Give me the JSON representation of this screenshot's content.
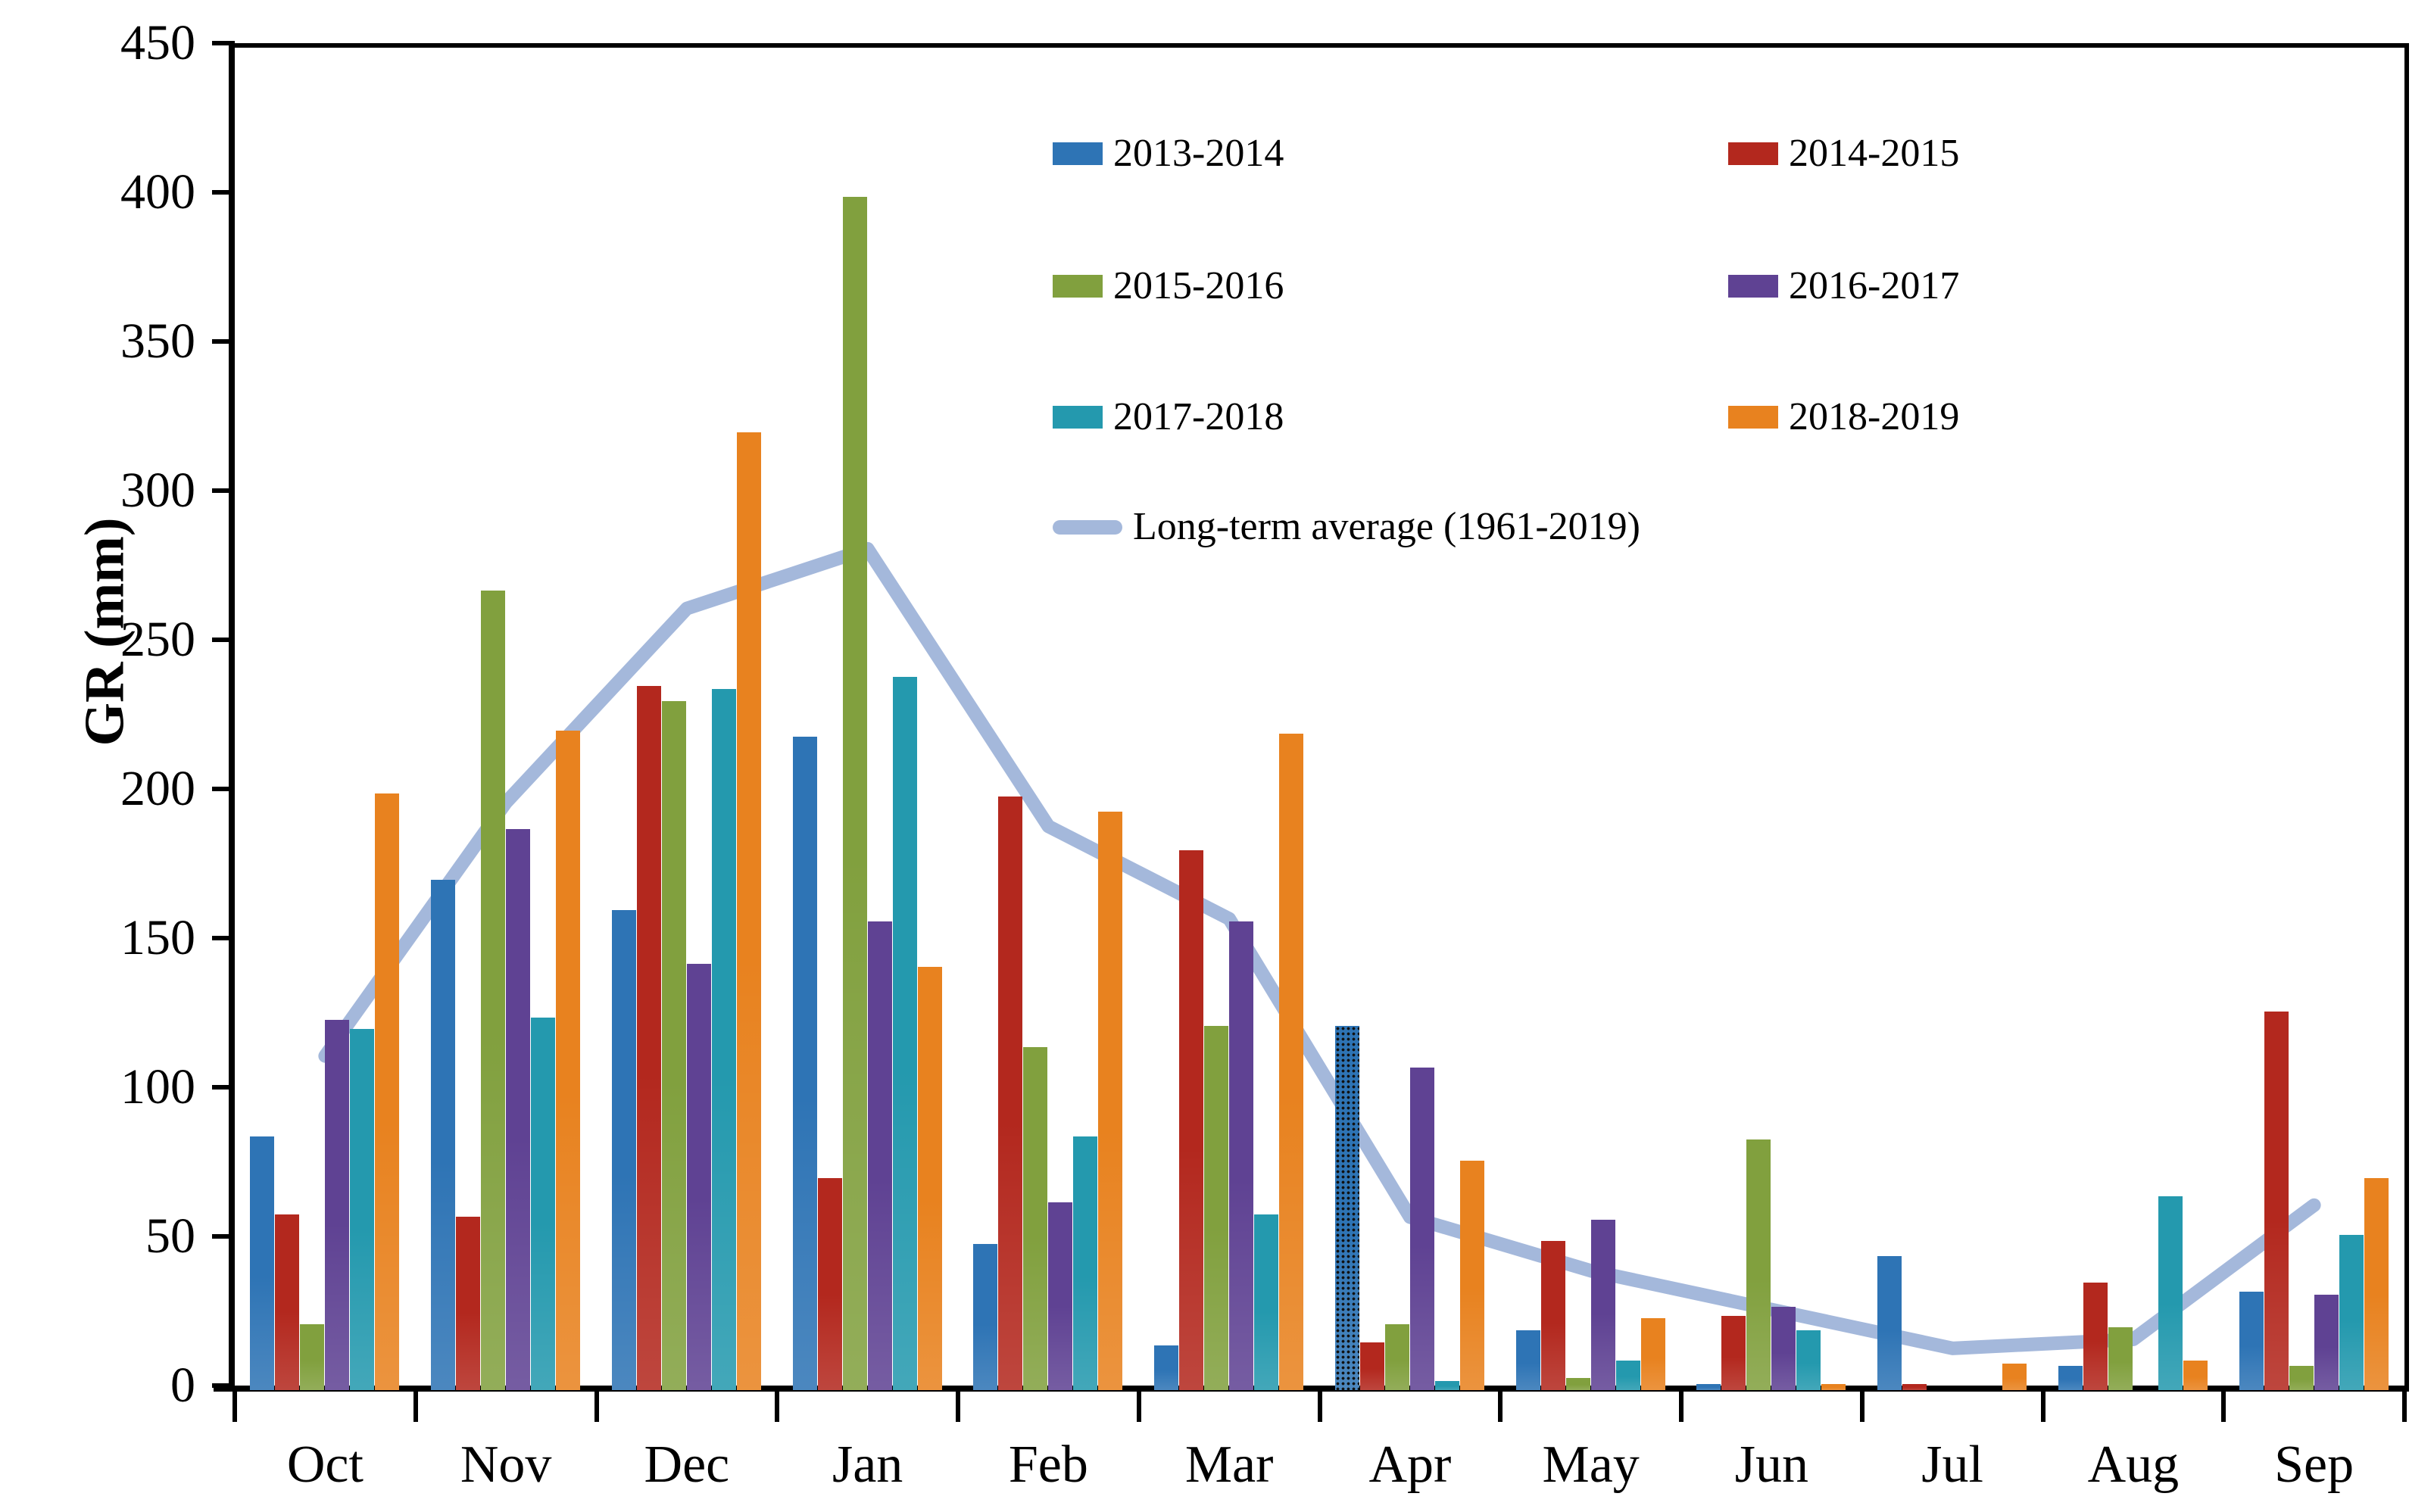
{
  "figure": {
    "ylabel": "GR (mm)",
    "background": "#ffffff",
    "axis_color": "#000000"
  },
  "chart_data": {
    "type": "bar",
    "title": "",
    "xlabel": "",
    "ylabel": "GR (mm)",
    "ylim": [
      0,
      450
    ],
    "y_tick_step": 50,
    "y_ticks": [
      0,
      50,
      100,
      150,
      200,
      250,
      300,
      350,
      400,
      450
    ],
    "grid": false,
    "legend_position": "inside-top-center",
    "categories": [
      "Oct",
      "Nov",
      "Dec",
      "Jan",
      "Feb",
      "Mar",
      "Apr",
      "May",
      "Jun",
      "Jul",
      "Aug",
      "Sep"
    ],
    "series": [
      {
        "name": "2013-2014",
        "color": "#2E74B5",
        "patterned_months": [
          "Apr"
        ],
        "values": [
          85,
          171,
          161,
          219,
          49,
          15,
          122,
          20,
          2,
          45,
          8,
          33
        ]
      },
      {
        "name": "2014-2015",
        "color": "#B3281E",
        "patterned_months": [],
        "values": [
          59,
          58,
          236,
          71,
          199,
          181,
          16,
          50,
          25,
          2,
          36,
          127
        ]
      },
      {
        "name": "2015-2016",
        "color": "#81A03E",
        "patterned_months": [],
        "values": [
          22,
          268,
          231,
          400,
          115,
          122,
          22,
          4,
          84,
          0,
          21,
          8
        ]
      },
      {
        "name": "2016-2017",
        "color": "#5F4293",
        "patterned_months": [],
        "values": [
          124,
          188,
          143,
          157,
          63,
          157,
          108,
          57,
          28,
          0,
          0,
          32
        ]
      },
      {
        "name": "2017-2018",
        "color": "#2499AE",
        "patterned_months": [],
        "values": [
          121,
          125,
          235,
          239,
          85,
          59,
          3,
          10,
          20,
          0,
          65,
          52
        ]
      },
      {
        "name": "2018-2019",
        "color": "#E8821F",
        "patterned_months": [],
        "values": [
          200,
          221,
          321,
          142,
          194,
          220,
          77,
          24,
          2,
          9,
          10,
          71
        ]
      }
    ],
    "line_series": {
      "name": "Long-term average (1961-2019)",
      "color": "#A4B8DB",
      "stroke_width": 18,
      "values": [
        112,
        197,
        262,
        282,
        189,
        158,
        58,
        40,
        27,
        14,
        17,
        62
      ]
    }
  },
  "legend": {
    "entries": [
      {
        "label": "2013-2014",
        "color": "#2E74B5",
        "kind": "box",
        "col": 0,
        "row": 0
      },
      {
        "label": "2014-2015",
        "color": "#B3281E",
        "kind": "box",
        "col": 1,
        "row": 0
      },
      {
        "label": "2015-2016",
        "color": "#81A03E",
        "kind": "box",
        "col": 0,
        "row": 1
      },
      {
        "label": "2016-2017",
        "color": "#5F4293",
        "kind": "box",
        "col": 1,
        "row": 1
      },
      {
        "label": "2017-2018",
        "color": "#2499AE",
        "kind": "box",
        "col": 0,
        "row": 2
      },
      {
        "label": "2018-2019",
        "color": "#E8821F",
        "kind": "box",
        "col": 1,
        "row": 2
      },
      {
        "label": "Long-term average (1961-2019)",
        "color": "#A4B8DB",
        "kind": "line",
        "col": 0,
        "row": 3
      }
    ]
  }
}
